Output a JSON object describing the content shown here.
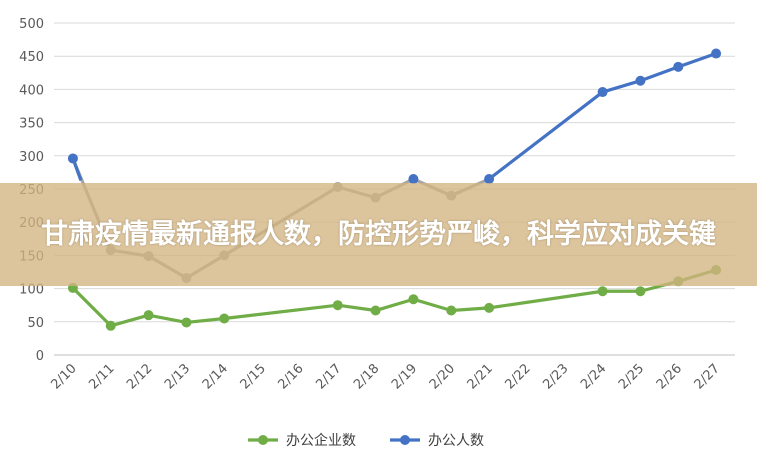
{
  "banner": {
    "title": "甘肃疫情最新通报人数，防控形势严峻，科学应对成关键"
  },
  "chart_data": {
    "type": "line",
    "categories": [
      "2/10",
      "2/11",
      "2/12",
      "2/13",
      "2/14",
      "2/15",
      "2/16",
      "2/17",
      "2/18",
      "2/19",
      "2/20",
      "2/21",
      "2/22",
      "2/23",
      "2/24",
      "2/25",
      "2/26",
      "2/27"
    ],
    "ylim": [
      0,
      500
    ],
    "yticks": [
      0,
      50,
      100,
      150,
      200,
      250,
      300,
      350,
      400,
      450,
      500
    ],
    "grid": true,
    "legend_position": "bottom",
    "series": [
      {
        "name": "办公企业数",
        "color": "#70AD47",
        "points": [
          {
            "x": "2/10",
            "y": 101
          },
          {
            "x": "2/11",
            "y": 44
          },
          {
            "x": "2/12",
            "y": 60
          },
          {
            "x": "2/13",
            "y": 49
          },
          {
            "x": "2/14",
            "y": 55
          },
          {
            "x": "2/17",
            "y": 75
          },
          {
            "x": "2/18",
            "y": 67
          },
          {
            "x": "2/19",
            "y": 84
          },
          {
            "x": "2/20",
            "y": 67
          },
          {
            "x": "2/21",
            "y": 71
          },
          {
            "x": "2/24",
            "y": 96
          },
          {
            "x": "2/25",
            "y": 96
          },
          {
            "x": "2/26",
            "y": 111
          },
          {
            "x": "2/27",
            "y": 128
          }
        ]
      },
      {
        "name": "办公人数",
        "color": "#4472C4",
        "points": [
          {
            "x": "2/10",
            "y": 296
          },
          {
            "x": "2/11",
            "y": 158
          },
          {
            "x": "2/12",
            "y": 149
          },
          {
            "x": "2/13",
            "y": 116
          },
          {
            "x": "2/14",
            "y": 150
          },
          {
            "x": "2/17",
            "y": 253
          },
          {
            "x": "2/18",
            "y": 237
          },
          {
            "x": "2/19",
            "y": 265
          },
          {
            "x": "2/20",
            "y": 240
          },
          {
            "x": "2/21",
            "y": 265
          },
          {
            "x": "2/24",
            "y": 396
          },
          {
            "x": "2/25",
            "y": 413
          },
          {
            "x": "2/26",
            "y": 434
          },
          {
            "x": "2/27",
            "y": 454
          }
        ]
      }
    ]
  }
}
